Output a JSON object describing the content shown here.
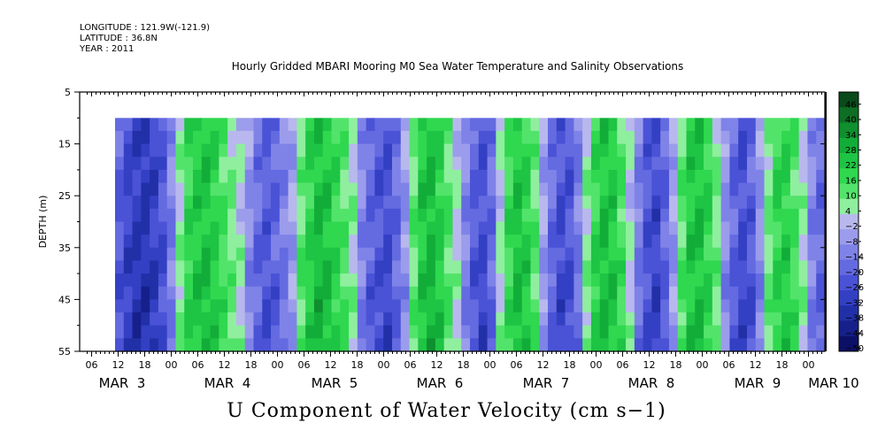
{
  "header": {
    "longitude": "LONGITUDE : 121.9W(-121.9)",
    "latitude": "LATITUDE : 36.8N",
    "year": "YEAR : 2011"
  },
  "chart_data": {
    "type": "heatmap",
    "title": "Hourly Gridded MBARI Mooring M0 Sea Water Temperature and Salinity Observations",
    "xlabel": "U Component of Water Velocity (cm s−1)",
    "ylabel": "DEPTH (m)",
    "y_ticks": [
      5,
      15,
      25,
      35,
      45,
      55
    ],
    "ylim": [
      55,
      5
    ],
    "data_depth_range": [
      10,
      55
    ],
    "x_hour_ticks": [
      "06",
      "12",
      "18",
      "00",
      "06",
      "12",
      "18",
      "00",
      "06",
      "12",
      "18",
      "00",
      "06",
      "12",
      "18",
      "00",
      "06",
      "12",
      "18",
      "00",
      "06",
      "12",
      "18",
      "00",
      "06",
      "12",
      "18",
      "00"
    ],
    "x_day_labels": [
      "MAR  3",
      "MAR  4",
      "MAR  5",
      "MAR  6",
      "MAR  7",
      "MAR  8",
      "MAR  9",
      "MAR 10"
    ],
    "colorbar": {
      "levels": [
        46,
        40,
        34,
        28,
        22,
        16,
        10,
        4,
        -2,
        -8,
        -14,
        -20,
        -26,
        -32,
        -38,
        -44,
        -50
      ],
      "colors": [
        "#0a4a1a",
        "#0d6e24",
        "#0f8f2e",
        "#12ad38",
        "#1ec443",
        "#2fd84f",
        "#52e46a",
        "#8fef9e",
        "#b8b8ee",
        "#9c9cec",
        "#7f83e8",
        "#646ae0",
        "#4a52d6",
        "#3340c4",
        "#2230a8",
        "#16208a",
        "#0b1066"
      ]
    },
    "u_profile_columns": [
      -18,
      -24,
      -28,
      -30,
      -26,
      -20,
      -8,
      6,
      18,
      22,
      24,
      20,
      14,
      8,
      2,
      -6,
      -14,
      -18,
      -16,
      -10,
      -2,
      10,
      20,
      26,
      24,
      18,
      12,
      4,
      -8,
      -16,
      -20,
      -22,
      -14,
      -4,
      10,
      22,
      26,
      20,
      12,
      2,
      -8,
      -18,
      -22,
      -14,
      2,
      16,
      24,
      20,
      10,
      -2,
      -14,
      -22,
      -20,
      -10,
      6,
      18,
      24,
      22,
      14,
      2,
      -10,
      -20,
      -24,
      -16,
      -2,
      12,
      22,
      24,
      18,
      8,
      -6,
      -16,
      -22,
      -18,
      -6,
      8,
      18,
      20,
      14,
      4,
      -8,
      -14
    ]
  }
}
